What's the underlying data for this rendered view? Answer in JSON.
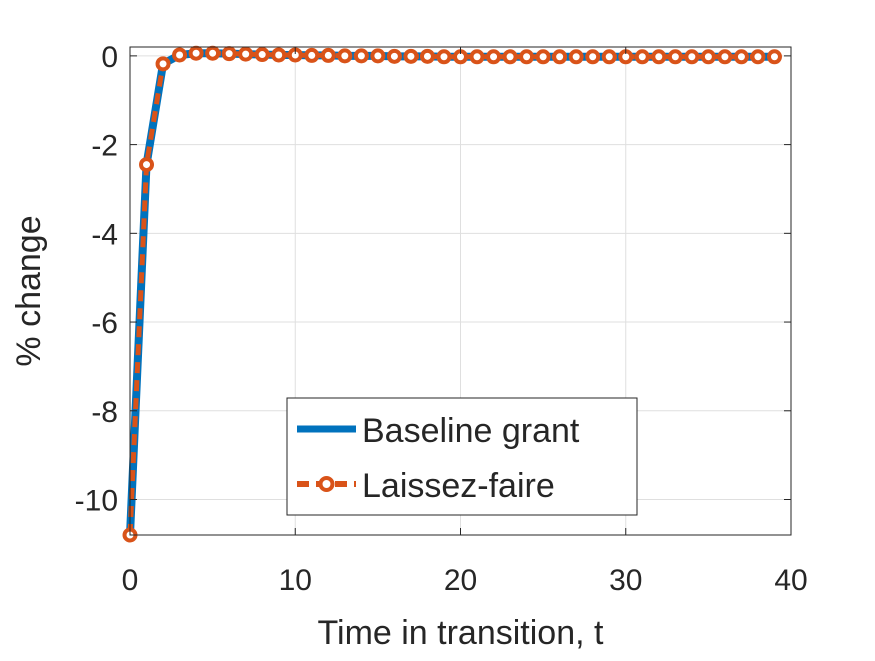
{
  "chart_data": {
    "type": "line",
    "title": "",
    "xlabel": "Time in transition, t",
    "ylabel": "% change",
    "xlim": [
      0,
      40
    ],
    "ylim": [
      -10.8,
      0.2
    ],
    "xticks": [
      0,
      10,
      20,
      30,
      40
    ],
    "yticks": [
      0,
      -2,
      -4,
      -6,
      -8,
      -10
    ],
    "xtick_labels": [
      "0",
      "10",
      "20",
      "30",
      "40"
    ],
    "ytick_labels": [
      "0",
      "-2",
      "-4",
      "-6",
      "-8",
      "-10"
    ],
    "grid": true,
    "legend_position": "lower-center",
    "x": [
      0,
      1,
      2,
      3,
      4,
      5,
      6,
      7,
      8,
      9,
      10,
      11,
      12,
      13,
      14,
      15,
      16,
      17,
      18,
      19,
      20,
      21,
      22,
      23,
      24,
      25,
      26,
      27,
      28,
      29,
      30,
      31,
      32,
      33,
      34,
      35,
      36,
      37,
      38,
      39
    ],
    "series": [
      {
        "name": "Baseline grant",
        "color": "#0072BD",
        "style": "solid",
        "values": [
          -10.8,
          -2.45,
          -0.18,
          0.02,
          0.06,
          0.06,
          0.05,
          0.04,
          0.03,
          0.02,
          0.02,
          0.01,
          0.01,
          0.0,
          0.0,
          0.0,
          -0.01,
          -0.01,
          -0.01,
          -0.02,
          -0.02,
          -0.02,
          -0.02,
          -0.02,
          -0.02,
          -0.02,
          -0.02,
          -0.02,
          -0.02,
          -0.02,
          -0.02,
          -0.02,
          -0.02,
          -0.02,
          -0.02,
          -0.02,
          -0.02,
          -0.02,
          -0.02,
          -0.02
        ]
      },
      {
        "name": "Laissez-faire",
        "color": "#D95319",
        "style": "dashed-circle",
        "values": [
          -10.8,
          -2.45,
          -0.18,
          0.02,
          0.06,
          0.06,
          0.05,
          0.04,
          0.03,
          0.02,
          0.02,
          0.01,
          0.01,
          0.0,
          0.0,
          0.0,
          -0.01,
          -0.01,
          -0.01,
          -0.02,
          -0.02,
          -0.02,
          -0.02,
          -0.02,
          -0.02,
          -0.02,
          -0.02,
          -0.02,
          -0.02,
          -0.02,
          -0.02,
          -0.02,
          -0.02,
          -0.02,
          -0.02,
          -0.02,
          -0.02,
          -0.02,
          -0.02,
          -0.02
        ]
      }
    ]
  }
}
